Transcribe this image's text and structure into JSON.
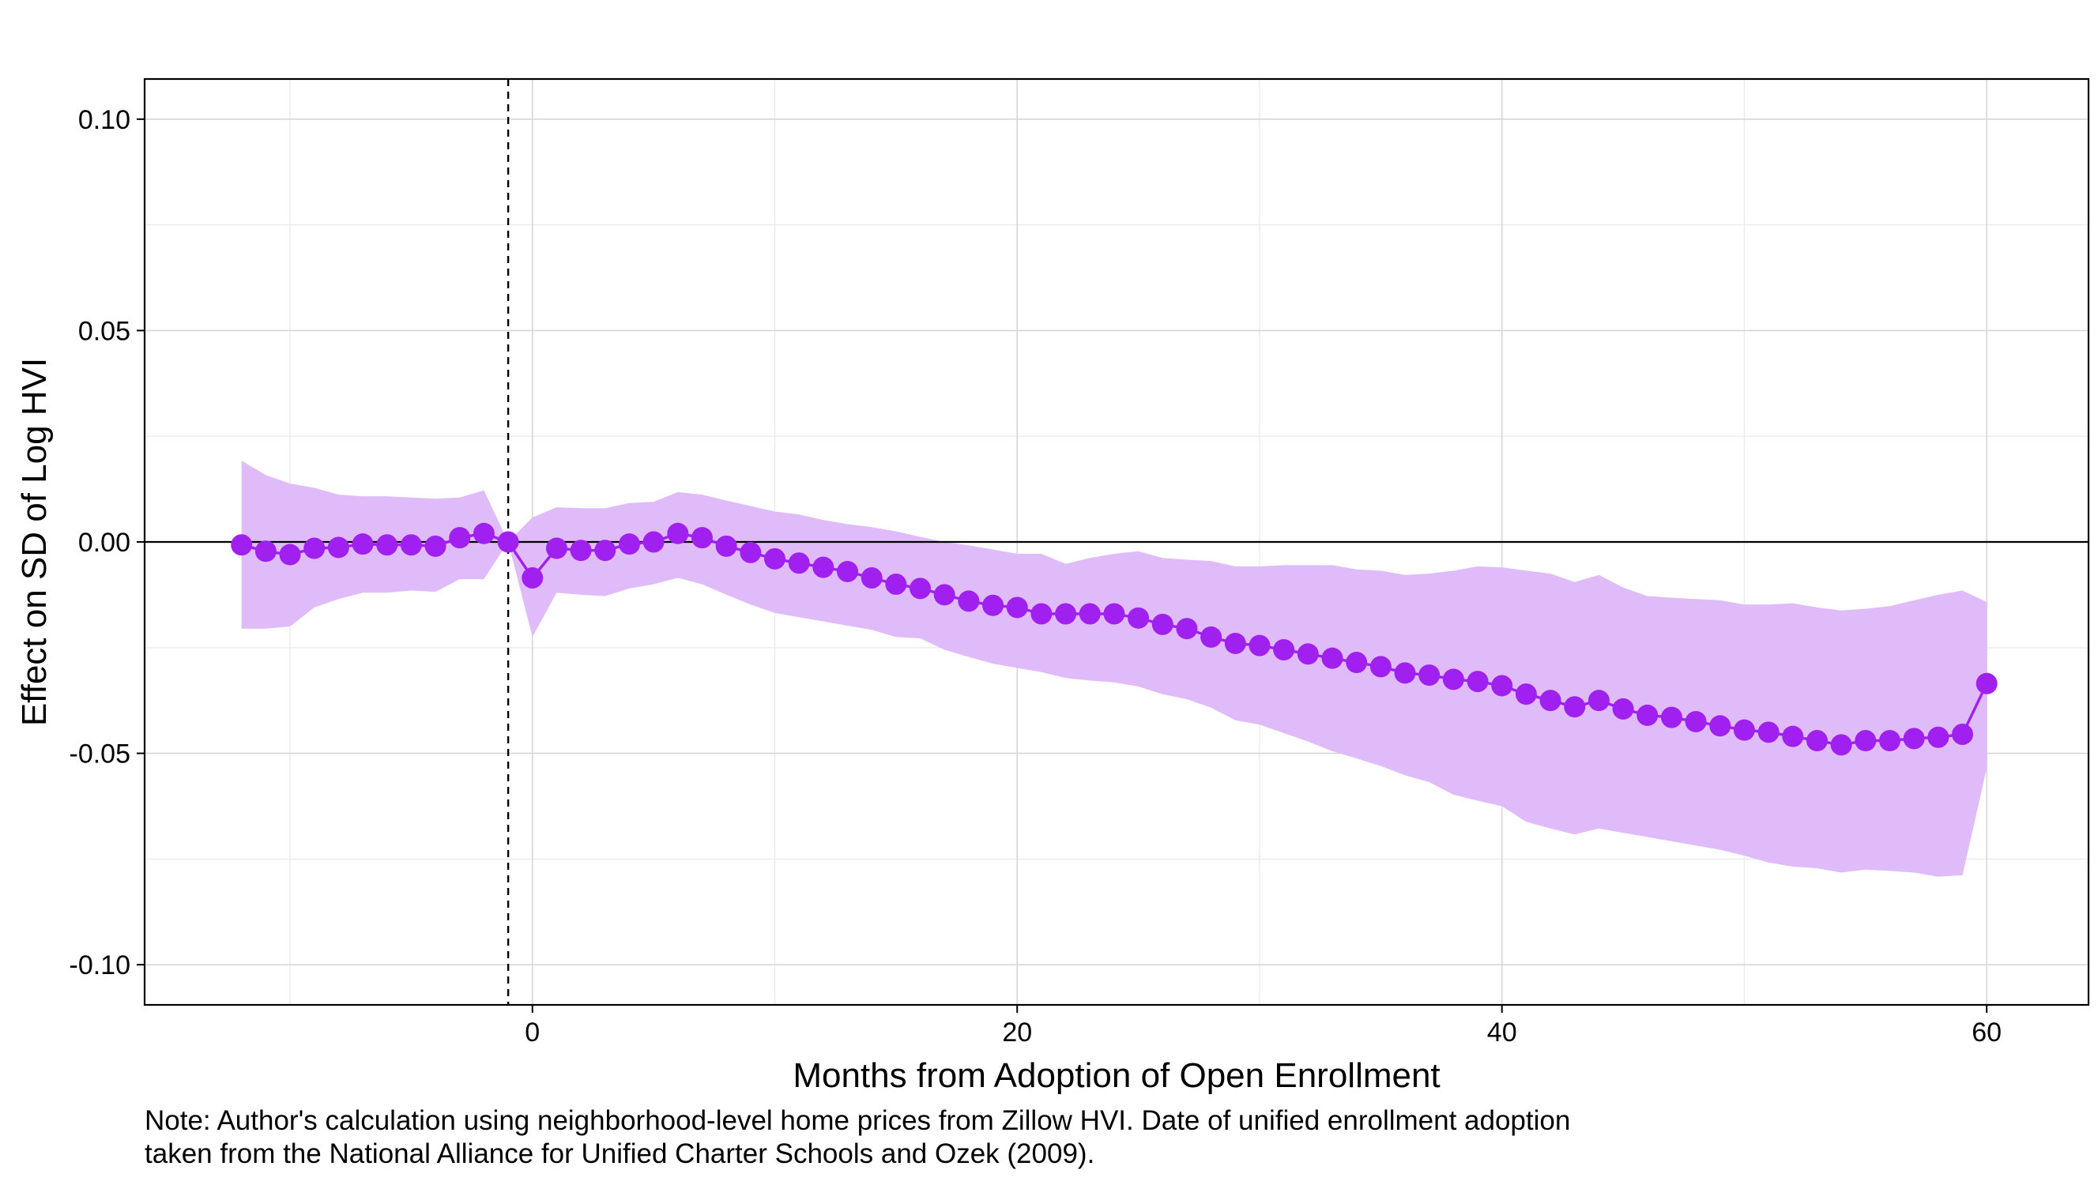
{
  "chart_data": {
    "type": "line",
    "title": "",
    "xlabel": "Months from Adoption of Open Enrollment",
    "ylabel": "Effect on SD of Log HVI",
    "xlim": [
      -16,
      64.2
    ],
    "ylim": [
      -0.1095,
      0.1095
    ],
    "x_ticks": [
      0,
      20,
      40,
      60
    ],
    "x_tick_labels": [
      "0",
      "20",
      "40",
      "60"
    ],
    "y_ticks": [
      -0.1,
      -0.05,
      0.0,
      0.05,
      0.1
    ],
    "y_tick_labels": [
      "-0.10",
      "-0.05",
      "0.00",
      "0.05",
      "0.10"
    ],
    "x_minor_gridlines": [
      -10,
      10,
      30,
      50
    ],
    "y_minor_gridlines": [
      -0.075,
      -0.025,
      0.025,
      0.075
    ],
    "reference_hline_y": 0,
    "reference_vline_x": -1,
    "grid": true,
    "legend": "none",
    "colors": {
      "line": "#a020f0",
      "points": "#a020f0",
      "ribbon": "#dfbbf9"
    },
    "series": [
      {
        "x": [
          -12,
          -11,
          -10,
          -9,
          -8,
          -7,
          -6,
          -5,
          -4,
          -3,
          -2,
          -1,
          0,
          1,
          2,
          3,
          4,
          5,
          6,
          7,
          8,
          9,
          10,
          11,
          12,
          13,
          14,
          15,
          16,
          17,
          18,
          19,
          20,
          21,
          22,
          23,
          24,
          25,
          26,
          27,
          28,
          29,
          30,
          31,
          32,
          33,
          34,
          35,
          36,
          37,
          38,
          39,
          40,
          41,
          42,
          43,
          44,
          45,
          46,
          47,
          48,
          49,
          50,
          51,
          52,
          53,
          54,
          55,
          56,
          57,
          58,
          59,
          60
        ],
        "values": [
          -0.0007,
          -0.0022,
          -0.003,
          -0.0015,
          -0.0013,
          -0.0005,
          -0.0007,
          -0.0007,
          -0.001,
          0.001,
          0.002,
          0.0,
          -0.0085,
          -0.0015,
          -0.002,
          -0.002,
          -0.0005,
          0.0,
          0.002,
          0.001,
          -0.001,
          -0.0025,
          -0.004,
          -0.005,
          -0.006,
          -0.007,
          -0.0085,
          -0.01,
          -0.011,
          -0.0125,
          -0.014,
          -0.015,
          -0.0155,
          -0.017,
          -0.017,
          -0.017,
          -0.017,
          -0.018,
          -0.0195,
          -0.0205,
          -0.0225,
          -0.024,
          -0.0245,
          -0.0255,
          -0.0265,
          -0.0275,
          -0.0285,
          -0.0295,
          -0.031,
          -0.0315,
          -0.0325,
          -0.033,
          -0.034,
          -0.036,
          -0.0375,
          -0.039,
          -0.0375,
          -0.0395,
          -0.041,
          -0.0415,
          -0.0425,
          -0.0435,
          -0.0445,
          -0.045,
          -0.046,
          -0.047,
          -0.048,
          -0.047,
          -0.047,
          -0.0465,
          -0.0462,
          -0.0455,
          -0.0335
        ],
        "lower": [
          -0.0205,
          -0.0205,
          -0.02,
          -0.0155,
          -0.0135,
          -0.012,
          -0.012,
          -0.0115,
          -0.0118,
          -0.0088,
          -0.0088,
          0.0,
          -0.0225,
          -0.012,
          -0.0125,
          -0.0128,
          -0.011,
          -0.01,
          -0.0085,
          -0.01,
          -0.0125,
          -0.0148,
          -0.0168,
          -0.0178,
          -0.0188,
          -0.0198,
          -0.0208,
          -0.0225,
          -0.0228,
          -0.0255,
          -0.0272,
          -0.0288,
          -0.0298,
          -0.0308,
          -0.0322,
          -0.0328,
          -0.0332,
          -0.0342,
          -0.036,
          -0.0372,
          -0.0392,
          -0.0422,
          -0.0432,
          -0.0452,
          -0.0472,
          -0.0495,
          -0.0512,
          -0.053,
          -0.0552,
          -0.0568,
          -0.0598,
          -0.0612,
          -0.0625,
          -0.0662,
          -0.0678,
          -0.0692,
          -0.0678,
          -0.0688,
          -0.0698,
          -0.0708,
          -0.0718,
          -0.0728,
          -0.0742,
          -0.0758,
          -0.0768,
          -0.0772,
          -0.0782,
          -0.0775,
          -0.0778,
          -0.0782,
          -0.0792,
          -0.0788,
          -0.0535
        ],
        "upper": [
          0.0192,
          0.0158,
          0.0138,
          0.0128,
          0.0112,
          0.0108,
          0.0108,
          0.0105,
          0.0102,
          0.0105,
          0.0122,
          0.0,
          0.0058,
          0.0082,
          0.008,
          0.008,
          0.0092,
          0.0095,
          0.0118,
          0.0112,
          0.0098,
          0.0085,
          0.0072,
          0.0065,
          0.0052,
          0.0042,
          0.0035,
          0.0025,
          0.0012,
          0.0,
          -0.0008,
          -0.0018,
          -0.0028,
          -0.0028,
          -0.0052,
          -0.0038,
          -0.0028,
          -0.0022,
          -0.0038,
          -0.0042,
          -0.0045,
          -0.0058,
          -0.0058,
          -0.0055,
          -0.0055,
          -0.0055,
          -0.0065,
          -0.0068,
          -0.0078,
          -0.0075,
          -0.0068,
          -0.0058,
          -0.006,
          -0.0068,
          -0.0075,
          -0.0095,
          -0.0078,
          -0.0108,
          -0.0128,
          -0.0132,
          -0.0135,
          -0.0138,
          -0.0148,
          -0.0148,
          -0.0145,
          -0.0155,
          -0.0162,
          -0.0158,
          -0.0152,
          -0.0138,
          -0.0125,
          -0.0115,
          -0.0142
        ]
      }
    ]
  },
  "note": {
    "line1": "Note: Author's calculation using neighborhood-level home prices from Zillow HVI.  Date of unified enrollment adoption",
    "line2": "taken from the National Alliance for Unified Charter Schools and Ozek (2009)."
  }
}
